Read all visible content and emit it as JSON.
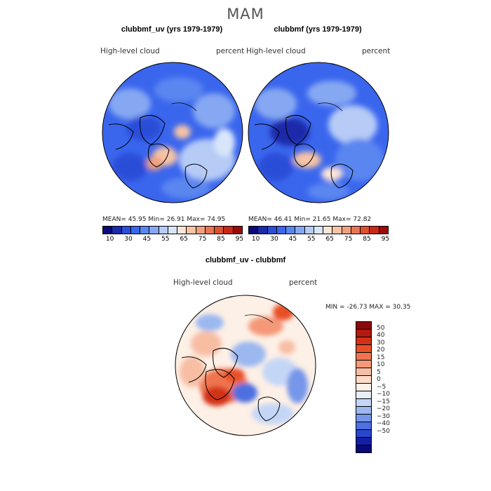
{
  "title": "MAM",
  "panels": [
    {
      "title": "clubbmf_uv (yrs 1979-1979)",
      "left_label": "High-level cloud",
      "right_label": "percent",
      "stats": "MEAN=   45.95   Min=   26.91   Max=   74.95"
    },
    {
      "title": "clubbmf (yrs 1979-1979)",
      "left_label": "High-level cloud",
      "right_label": "percent",
      "stats": "MEAN=   46.41   Min=   21.65   Max=   72.82"
    }
  ],
  "abs_colorbar": {
    "colors": [
      "#0a0a7a",
      "#1a2aaa",
      "#2a4ed8",
      "#3a66ee",
      "#5a86f0",
      "#86a8f2",
      "#b6cbf5",
      "#d9e6fa",
      "#fbe5d6",
      "#f6c3a6",
      "#f0a07e",
      "#e87656",
      "#de5030",
      "#c82818",
      "#9a0a0a"
    ],
    "labels": [
      "10",
      "30",
      "45",
      "55",
      "65",
      "75",
      "85",
      "95"
    ]
  },
  "diff_panel": {
    "title": "clubbmf_uv - clubbmf",
    "left_label": "High-level cloud",
    "right_label": "percent",
    "stats": "MIN = -26.73  MAX =   30.35"
  },
  "diff_colorbar": {
    "colors": [
      "#8a0a0a",
      "#b01a10",
      "#d23018",
      "#e85028",
      "#f07450",
      "#f49878",
      "#f8bea4",
      "#fcdcc8",
      "#fdf0e6",
      "#e6eefb",
      "#c4d6f6",
      "#9cb8f0",
      "#7696ea",
      "#4e70e0",
      "#2a46cc",
      "#1220a8",
      "#080a7a"
    ],
    "labels": [
      "50",
      "40",
      "30",
      "20",
      "15",
      "10",
      "5",
      "0",
      "−5",
      "−10",
      "−15",
      "−20",
      "−30",
      "−40",
      "−50"
    ]
  }
}
